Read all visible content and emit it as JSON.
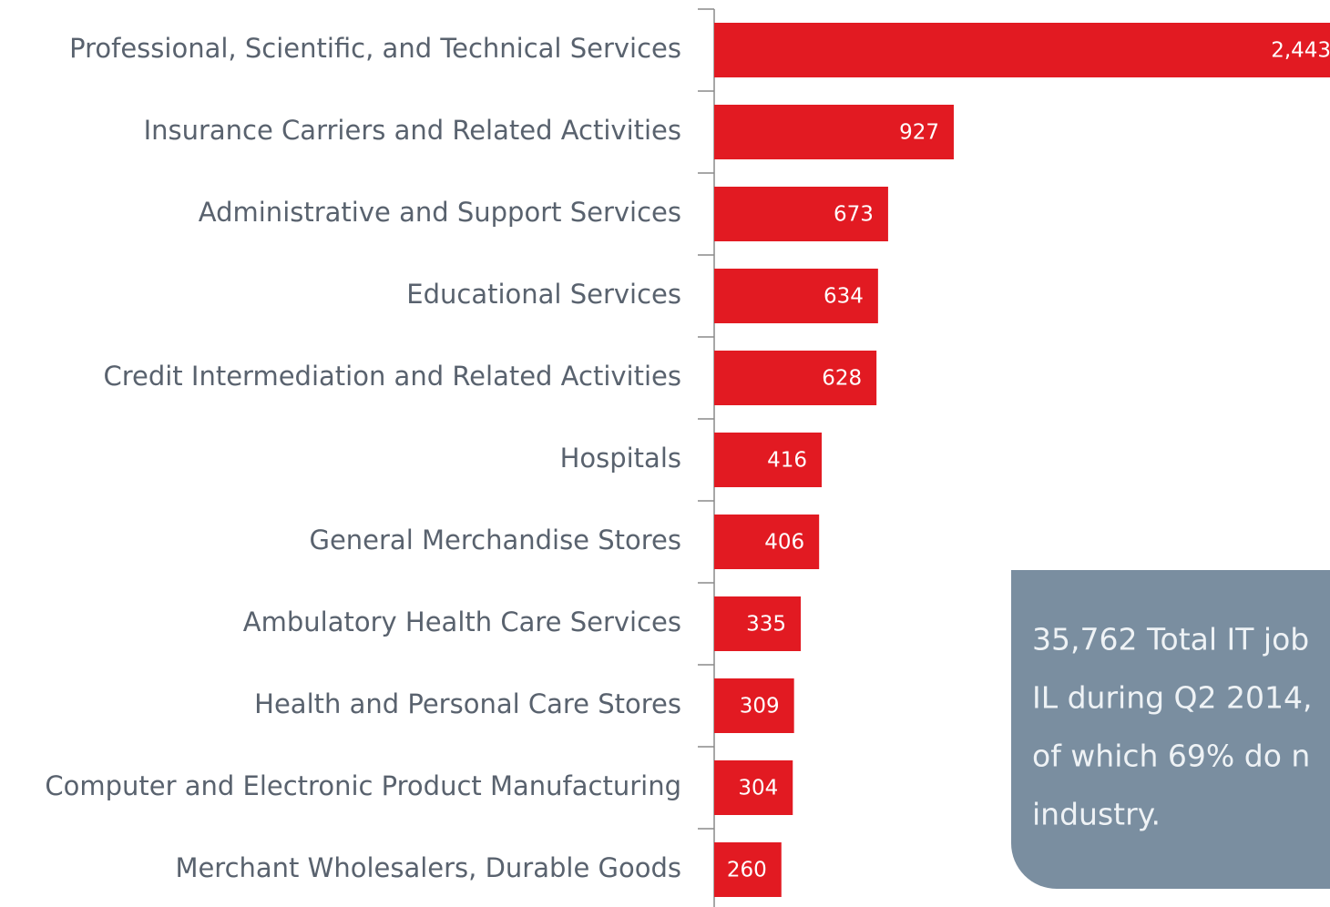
{
  "chart_data": {
    "type": "bar",
    "orientation": "horizontal",
    "categories": [
      "Professional, Scientific, and Technical Services",
      "Insurance Carriers and Related Activities",
      "Administrative and Support Services",
      "Educational Services",
      "Credit Intermediation and Related Activities",
      "Hospitals",
      "General Merchandise Stores",
      "Ambulatory Health Care Services",
      "Health and Personal Care Stores",
      "Computer and Electronic Product Manufacturing",
      "Merchant Wholesalers, Durable Goods"
    ],
    "values": [
      2443,
      927,
      673,
      634,
      628,
      416,
      406,
      335,
      309,
      304,
      260
    ],
    "value_labels": [
      "2,443",
      "927",
      "673",
      "634",
      "628",
      "416",
      "406",
      "335",
      "309",
      "304",
      "260"
    ],
    "color": "#e21a22",
    "annotation": [
      "35,762 Total IT job",
      "IL during Q2 2014,",
      "of which 69% do n",
      "industry."
    ]
  }
}
